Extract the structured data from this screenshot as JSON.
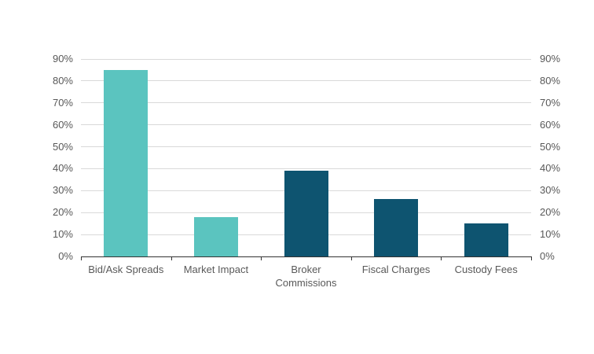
{
  "chart_data": {
    "type": "bar",
    "title": "",
    "xlabel": "",
    "ylabel": "",
    "categories": [
      "Bid/Ask Spreads",
      "Market Impact",
      "Broker Commissions",
      "Fiscal Charges",
      "Custody Fees"
    ],
    "values": [
      85,
      18,
      39,
      26,
      15
    ],
    "value_unit": "%",
    "bar_colors": [
      "#5BC4BF",
      "#5BC4BF",
      "#0E5470",
      "#0E5470",
      "#0E5470"
    ],
    "ylim": [
      0,
      90
    ],
    "ytick_step": 10,
    "ytick_suffix": "%",
    "grid": true,
    "legend": "none",
    "y_axis_sides": [
      "left",
      "right"
    ],
    "colors": {
      "series_teal": "#5BC4BF",
      "series_navy": "#0E5470",
      "gridline": "#D9D9D9",
      "axis_line": "#333333",
      "tick_label": "#595959",
      "background": "#FFFFFF"
    }
  }
}
